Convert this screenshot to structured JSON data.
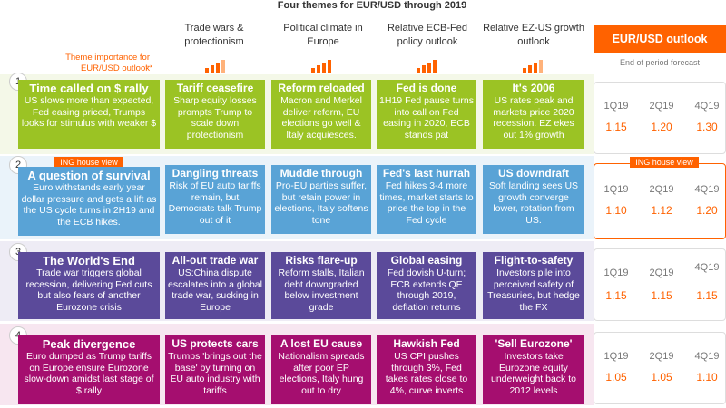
{
  "title": "Four themes for EUR/USD through 2019",
  "importance_label": "Theme importance for EUR/USD outlook",
  "columns": [
    {
      "label": "Trade wars & protectionism",
      "importance": 3
    },
    {
      "label": "Political climate in Europe",
      "importance": 4
    },
    {
      "label": "Relative ECB-Fed policy outlook",
      "importance": 4
    },
    {
      "label": "Relative EZ-US growth outlook",
      "importance": 3
    }
  ],
  "outlook": {
    "title": "EUR/USD outlook",
    "subtitle": "End of period forecast",
    "quarters": [
      "1Q19",
      "2Q19",
      "4Q19"
    ]
  },
  "scenarios": [
    {
      "number": "1",
      "title": "Time called on $ rally",
      "desc": "US slows more than expected, Fed easing priced, Trumps looks for stimulus with weaker $",
      "cells": [
        {
          "title": "Tariff ceasefire",
          "desc": "Sharp equity losses prompts Trump to scale down protectionism"
        },
        {
          "title": "Reform reloaded",
          "desc": "Macron and Merkel deliver reform, EU elections go well & Italy acquiesces."
        },
        {
          "title": "Fed is done",
          "desc": "1H19 Fed pause turns into call on Fed easing in 2020, ECB stands pat"
        },
        {
          "title": "It's 2006",
          "desc": "US rates peak and markets price 2020 recession. EZ ekes out 1% growth"
        }
      ],
      "forecast": [
        "1.15",
        "1.20",
        "1.30"
      ]
    },
    {
      "number": "2",
      "tag": "ING house view",
      "title": "A question of survival",
      "desc": "Euro withstands early year dollar pressure and gets a lift as the US cycle turns in 2H19 and the ECB hikes.",
      "cells": [
        {
          "title": "Dangling threats",
          "desc": "Risk of EU auto tariffs remain, but Democrats talk Trump out of it"
        },
        {
          "title": "Muddle through",
          "desc": "Pro-EU parties suffer, but retain power in elections, Italy softens tone"
        },
        {
          "title": "Fed's last hurrah",
          "desc": "Fed hikes 3-4 more times, market starts to price the top in the Fed cycle"
        },
        {
          "title": "US downdraft",
          "desc": "Soft landing sees US growth converge lower, rotation from US."
        }
      ],
      "forecast": [
        "1.10",
        "1.12",
        "1.20"
      ],
      "forecast_tag": "ING house view"
    },
    {
      "number": "3",
      "title": "The World's End",
      "desc": "Trade war triggers global recession, delivering Fed cuts but also fears of another Eurozone crisis",
      "cells": [
        {
          "title": "All-out trade war",
          "desc": "US:China dispute escalates into a global trade war, sucking in Europe"
        },
        {
          "title": "Risks flare-up",
          "desc": "Reform stalls, Italian debt downgraded below investment grade"
        },
        {
          "title": "Global easing",
          "desc": "Fed dovish U-turn; ECB extends QE through 2019, deflation returns"
        },
        {
          "title": "Flight-to-safety",
          "desc": "Investors pile into perceived safety of Treasuries, but hedge the FX"
        }
      ],
      "forecast": [
        "1.15",
        "1.15",
        "1.15"
      ]
    },
    {
      "number": "4",
      "title": "Peak divergence",
      "desc": "Euro dumped as Trump tariffs on Europe ensure Eurozone slow-down amidst last stage of $ rally",
      "cells": [
        {
          "title": "US protects cars",
          "desc": "Trumps 'brings out the base' by turning on EU auto industry with tariffs"
        },
        {
          "title": "A lost EU cause",
          "desc": "Nationalism spreads after poor EP elections, Italy hung out to dry"
        },
        {
          "title": "Hawkish Fed",
          "desc": "US CPI pushes through 3%, Fed takes rates close to 4%, curve inverts"
        },
        {
          "title": "'Sell Eurozone'",
          "desc": "Investors take Eurozone equity underweight back to 2012 levels"
        }
      ],
      "forecast": [
        "1.05",
        "1.05",
        "1.10"
      ]
    }
  ],
  "colors": {
    "accent": "#ff6200",
    "s1": "#9bc324",
    "s2": "#59a3d6",
    "s3": "#5b4a9a",
    "s4": "#a50e6f"
  }
}
